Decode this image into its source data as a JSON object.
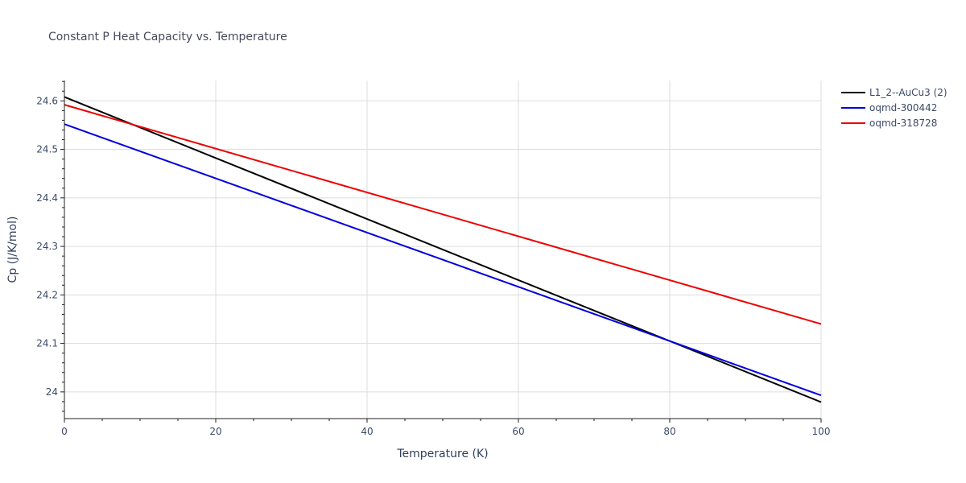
{
  "chart_data": {
    "type": "line",
    "title": "Constant P Heat Capacity vs. Temperature",
    "xlabel": "Temperature (K)",
    "ylabel": "Cp (J/K/mol)",
    "xlim": [
      0,
      100
    ],
    "ylim": [
      23.945,
      24.642
    ],
    "xticks": [
      0,
      20,
      40,
      60,
      80,
      100
    ],
    "xtick_labels": [
      "0",
      "20",
      "40",
      "60",
      "80",
      "100"
    ],
    "yticks": [
      24.0,
      24.1,
      24.2,
      24.3,
      24.4,
      24.5,
      24.6
    ],
    "ytick_labels": [
      "24",
      "24.1",
      "24.2",
      "24.3",
      "24.4",
      "24.5",
      "24.6"
    ],
    "grid": true,
    "legend_position": "top-right outside",
    "series": [
      {
        "name": "L1_2--AuCu3 (2)",
        "color": "#000000",
        "x": [
          0,
          100
        ],
        "y": [
          24.608,
          23.979
        ]
      },
      {
        "name": "oqmd-300442",
        "color": "#0000dd",
        "x": [
          0,
          100
        ],
        "y": [
          24.552,
          23.993
        ]
      },
      {
        "name": "oqmd-318728",
        "color": "#ee0000",
        "x": [
          0,
          100
        ],
        "y": [
          24.592,
          24.14
        ]
      }
    ]
  }
}
